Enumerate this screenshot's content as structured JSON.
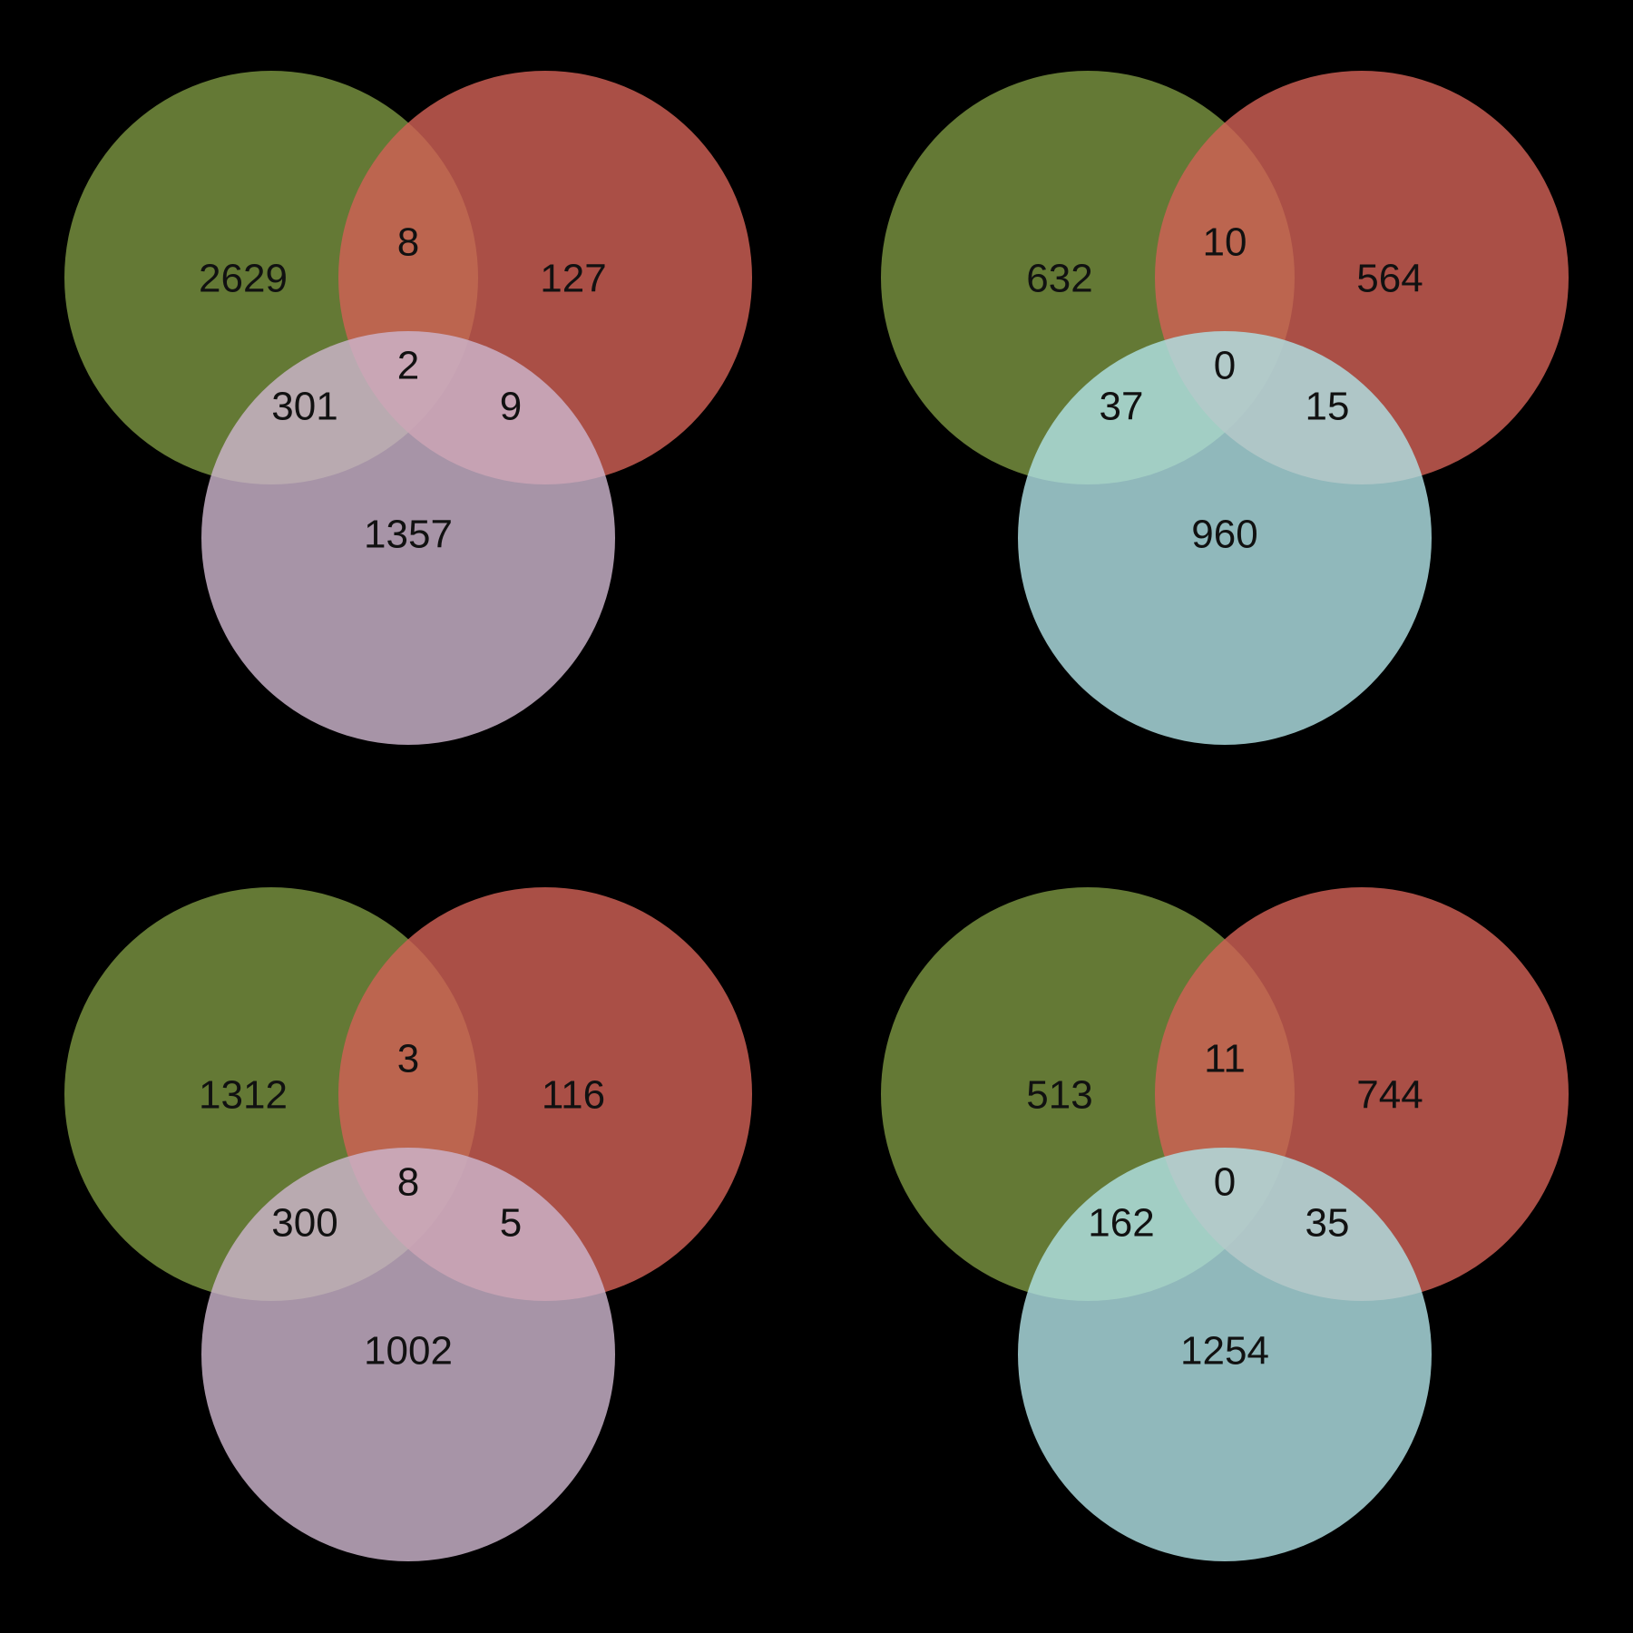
{
  "colors": {
    "background": "#000000",
    "set_a": "#7a9441",
    "set_b": "#cf6055",
    "set_c_purple": "#ccb4cc",
    "set_c_cyan": "#b0e0e4",
    "label_text": "#111111"
  },
  "panels": [
    {
      "third_set_color": "#ccb4cc",
      "counts": {
        "a_only": "2629",
        "b_only": "127",
        "c_only": "1357",
        "ab": "8",
        "ac": "301",
        "bc": "9",
        "abc": "2"
      }
    },
    {
      "third_set_color": "#b0e0e4",
      "counts": {
        "a_only": "632",
        "b_only": "564",
        "c_only": "960",
        "ab": "10",
        "ac": "37",
        "bc": "15",
        "abc": "0"
      }
    },
    {
      "third_set_color": "#ccb4cc",
      "counts": {
        "a_only": "1312",
        "b_only": "116",
        "c_only": "1002",
        "ab": "3",
        "ac": "300",
        "bc": "5",
        "abc": "8"
      }
    },
    {
      "third_set_color": "#b0e0e4",
      "counts": {
        "a_only": "513",
        "b_only": "744",
        "c_only": "1254",
        "ab": "11",
        "ac": "162",
        "bc": "35",
        "abc": "0"
      }
    }
  ]
}
